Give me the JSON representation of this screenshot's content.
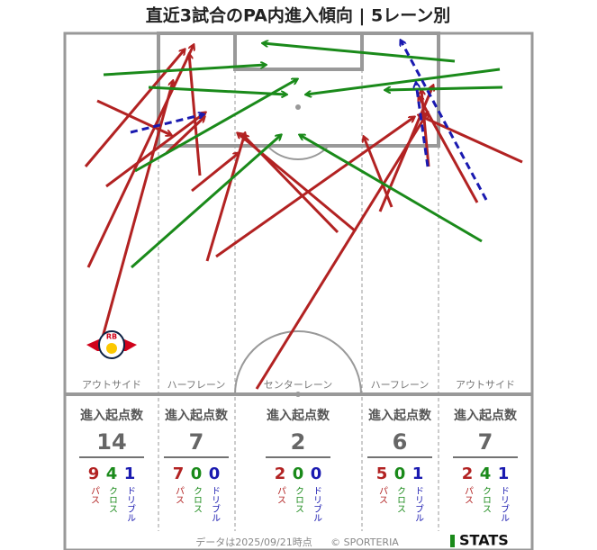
{
  "title": "直近3試合のPA内進入傾向 | 5レーン別",
  "stats_header": "進入起点数",
  "breakdown_labels": {
    "pass": "パス",
    "cross": "クロス",
    "dribble": "ドリブル"
  },
  "lanes": [
    {
      "label": "アウトサイド",
      "total": 14,
      "pass": 9,
      "cross": 4,
      "dribble": 1
    },
    {
      "label": "ハーフレーン",
      "total": 7,
      "pass": 7,
      "cross": 0,
      "dribble": 0
    },
    {
      "label": "センターレーン",
      "total": 2,
      "pass": 2,
      "cross": 0,
      "dribble": 0
    },
    {
      "label": "ハーフレーン",
      "total": 6,
      "pass": 5,
      "cross": 0,
      "dribble": 1
    },
    {
      "label": "アウトサイド",
      "total": 7,
      "pass": 2,
      "cross": 4,
      "dribble": 1
    }
  ],
  "badge": "RB",
  "date_note": "データは2025/09/21時点",
  "copyright": "© SPORTERIA",
  "logo": "STATS"
}
